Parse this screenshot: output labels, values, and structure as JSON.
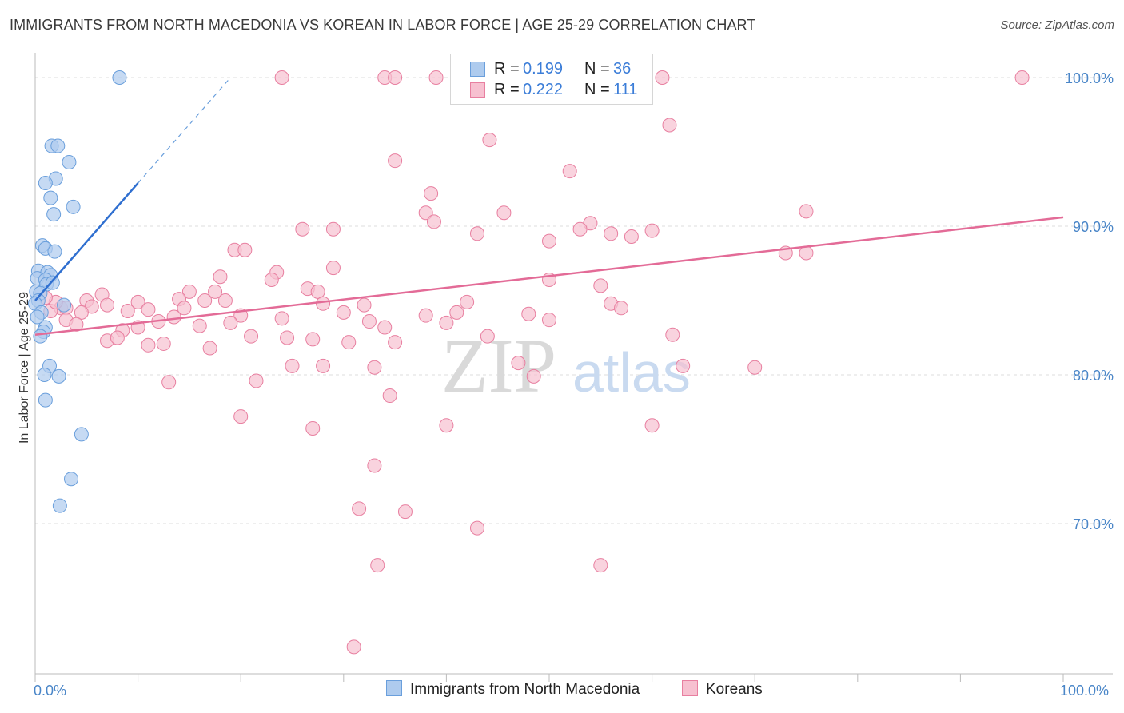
{
  "title": "IMMIGRANTS FROM NORTH MACEDONIA VS KOREAN IN LABOR FORCE | AGE 25-29 CORRELATION CHART",
  "source": "Source: ZipAtlas.com",
  "watermark": {
    "zip": "ZIP",
    "atlas": "atlas"
  },
  "legend": {
    "r_label": "R =",
    "n_label": "N =",
    "series": [
      {
        "r": "0.199",
        "n": "36"
      },
      {
        "r": "0.222",
        "n": "111"
      }
    ]
  },
  "bottom_legend": [
    "Immigrants from North Macedonia",
    "Koreans"
  ],
  "colors": {
    "blue_fill": "#aecbee",
    "blue_stroke": "#6a9fdc",
    "blue_line": "#2f6fd0",
    "pink_fill": "#f7c0d0",
    "pink_stroke": "#e87fa0",
    "pink_line": "#e36b97",
    "grid": "#dddddd",
    "tick_label": "#4a86c8"
  },
  "chart_data": {
    "type": "scatter",
    "title": "IMMIGRANTS FROM NORTH MACEDONIA VS KOREAN IN LABOR FORCE | AGE 25-29 CORRELATION CHART",
    "xlabel": "",
    "ylabel": "In Labor Force | Age 25-29",
    "xlim": [
      0,
      100
    ],
    "ylim": [
      60.5,
      101.5
    ],
    "x_tick_labels": [
      "0.0%",
      "100.0%"
    ],
    "y_ticks": [
      70,
      80,
      90,
      100
    ],
    "y_tick_labels": [
      "70.0%",
      "80.0%",
      "90.0%",
      "100.0%"
    ],
    "series": [
      {
        "name": "Immigrants from North Macedonia",
        "color": "blue",
        "r": 0.199,
        "n": 36,
        "trend": {
          "x0": 0.0,
          "y0": 85.0,
          "x1": 10.0,
          "y1": 92.9,
          "dash_to_x": 19.0,
          "dash_to_y": 100.0
        },
        "points": [
          [
            8.2,
            100.0
          ],
          [
            1.6,
            95.4
          ],
          [
            2.2,
            95.4
          ],
          [
            3.3,
            94.3
          ],
          [
            2.0,
            93.2
          ],
          [
            1.0,
            92.9
          ],
          [
            1.5,
            91.9
          ],
          [
            3.7,
            91.3
          ],
          [
            1.8,
            90.8
          ],
          [
            0.7,
            88.7
          ],
          [
            1.0,
            88.5
          ],
          [
            1.9,
            88.3
          ],
          [
            0.3,
            87.0
          ],
          [
            1.2,
            86.9
          ],
          [
            1.5,
            86.7
          ],
          [
            0.2,
            86.5
          ],
          [
            1.0,
            86.4
          ],
          [
            1.1,
            86.1
          ],
          [
            1.7,
            86.2
          ],
          [
            0.1,
            85.6
          ],
          [
            0.5,
            85.5
          ],
          [
            0.3,
            85.0
          ],
          [
            0.0,
            84.8
          ],
          [
            2.8,
            84.7
          ],
          [
            0.6,
            84.2
          ],
          [
            1.0,
            83.2
          ],
          [
            0.8,
            82.9
          ],
          [
            0.5,
            82.6
          ],
          [
            1.4,
            80.6
          ],
          [
            0.9,
            80.0
          ],
          [
            2.3,
            79.9
          ],
          [
            1.0,
            78.3
          ],
          [
            4.5,
            76.0
          ],
          [
            3.5,
            73.0
          ],
          [
            2.4,
            71.2
          ],
          [
            0.2,
            83.9
          ]
        ]
      },
      {
        "name": "Koreans",
        "color": "pink",
        "r": 0.222,
        "n": 111,
        "trend": {
          "x0": 0.0,
          "y0": 82.7,
          "x1": 100.0,
          "y1": 90.6
        },
        "points": [
          [
            24.0,
            100.0
          ],
          [
            34.0,
            100.0
          ],
          [
            35.0,
            100.0
          ],
          [
            39.0,
            100.0
          ],
          [
            61.0,
            100.0
          ],
          [
            96.0,
            100.0
          ],
          [
            61.7,
            96.8
          ],
          [
            44.2,
            95.8
          ],
          [
            35.0,
            94.4
          ],
          [
            52.0,
            93.7
          ],
          [
            38.5,
            92.2
          ],
          [
            75.0,
            91.0
          ],
          [
            38.0,
            90.9
          ],
          [
            45.6,
            90.9
          ],
          [
            38.8,
            90.3
          ],
          [
            54.0,
            90.2
          ],
          [
            26.0,
            89.8
          ],
          [
            29.0,
            89.8
          ],
          [
            53.0,
            89.8
          ],
          [
            60.0,
            89.7
          ],
          [
            43.0,
            89.5
          ],
          [
            56.0,
            89.5
          ],
          [
            58.0,
            89.3
          ],
          [
            50.0,
            89.0
          ],
          [
            19.4,
            88.4
          ],
          [
            20.4,
            88.4
          ],
          [
            73.0,
            88.2
          ],
          [
            75.0,
            88.2
          ],
          [
            29.0,
            87.2
          ],
          [
            23.5,
            86.9
          ],
          [
            18.0,
            86.6
          ],
          [
            23.0,
            86.4
          ],
          [
            50.0,
            86.4
          ],
          [
            15.0,
            85.6
          ],
          [
            17.5,
            85.6
          ],
          [
            26.5,
            85.8
          ],
          [
            27.5,
            85.6
          ],
          [
            55.0,
            86.0
          ],
          [
            6.5,
            85.4
          ],
          [
            5.0,
            85.0
          ],
          [
            10.0,
            84.9
          ],
          [
            14.0,
            85.1
          ],
          [
            16.5,
            85.0
          ],
          [
            18.5,
            85.0
          ],
          [
            28.0,
            84.8
          ],
          [
            32.0,
            84.7
          ],
          [
            42.0,
            84.9
          ],
          [
            56.0,
            84.8
          ],
          [
            2.5,
            84.5
          ],
          [
            5.5,
            84.6
          ],
          [
            7.0,
            84.7
          ],
          [
            11.0,
            84.4
          ],
          [
            14.5,
            84.5
          ],
          [
            20.0,
            84.0
          ],
          [
            30.0,
            84.2
          ],
          [
            38.0,
            84.0
          ],
          [
            41.0,
            84.2
          ],
          [
            48.0,
            84.1
          ],
          [
            57.0,
            84.5
          ],
          [
            1.5,
            84.3
          ],
          [
            3.0,
            84.5
          ],
          [
            4.5,
            84.2
          ],
          [
            9.0,
            84.3
          ],
          [
            12.0,
            83.6
          ],
          [
            13.5,
            83.9
          ],
          [
            19.0,
            83.5
          ],
          [
            24.0,
            83.8
          ],
          [
            32.5,
            83.6
          ],
          [
            34.0,
            83.2
          ],
          [
            40.0,
            83.5
          ],
          [
            50.0,
            83.7
          ],
          [
            3.0,
            83.7
          ],
          [
            4.0,
            83.4
          ],
          [
            8.5,
            83.0
          ],
          [
            10.0,
            83.2
          ],
          [
            16.0,
            83.3
          ],
          [
            21.0,
            82.6
          ],
          [
            24.5,
            82.5
          ],
          [
            27.0,
            82.4
          ],
          [
            30.5,
            82.2
          ],
          [
            35.0,
            82.2
          ],
          [
            44.0,
            82.6
          ],
          [
            62.0,
            82.7
          ],
          [
            7.0,
            82.3
          ],
          [
            8.0,
            82.5
          ],
          [
            11.0,
            82.0
          ],
          [
            12.5,
            82.1
          ],
          [
            17.0,
            81.8
          ],
          [
            2.0,
            84.9
          ],
          [
            1.0,
            85.2
          ],
          [
            25.0,
            80.6
          ],
          [
            28.0,
            80.6
          ],
          [
            33.0,
            80.5
          ],
          [
            47.0,
            80.8
          ],
          [
            63.0,
            80.6
          ],
          [
            70.0,
            80.5
          ],
          [
            13.0,
            79.5
          ],
          [
            21.5,
            79.6
          ],
          [
            48.5,
            79.9
          ],
          [
            34.5,
            78.6
          ],
          [
            20.0,
            77.2
          ],
          [
            27.0,
            76.4
          ],
          [
            40.0,
            76.6
          ],
          [
            33.0,
            73.9
          ],
          [
            31.5,
            71.0
          ],
          [
            36.0,
            70.8
          ],
          [
            43.0,
            69.7
          ],
          [
            33.3,
            67.2
          ],
          [
            55.0,
            67.2
          ],
          [
            60.0,
            76.6
          ],
          [
            31.0,
            61.7
          ]
        ]
      }
    ]
  }
}
